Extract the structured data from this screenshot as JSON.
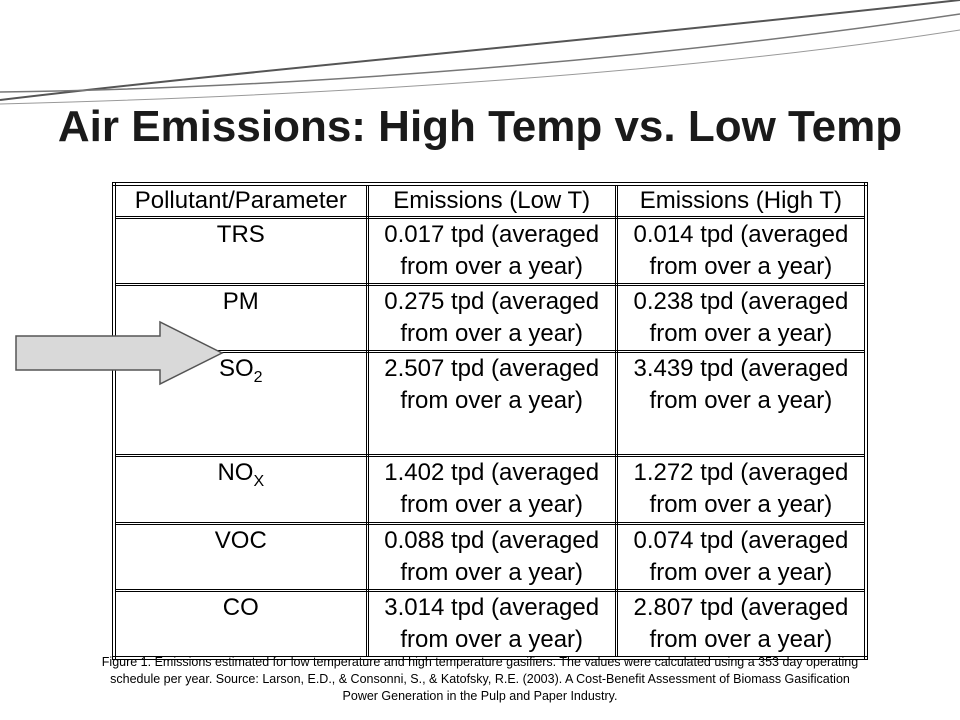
{
  "slide": {
    "title": "Air Emissions: High Temp vs. Low Temp"
  },
  "table": {
    "headers": [
      "Pollutant/Parameter",
      "Emissions (Low T)",
      "Emissions (High T)"
    ],
    "rows": [
      {
        "pollutant": "TRS",
        "sub": "",
        "low_line1": "0.017 tpd (averaged",
        "low_line2": "from over a year)",
        "high_line1": "0.014 tpd (averaged",
        "high_line2": "from over a year)"
      },
      {
        "pollutant": "PM",
        "sub": "",
        "low_line1": "0.275 tpd (averaged",
        "low_line2": "from over a year)",
        "high_line1": "0.238 tpd (averaged",
        "high_line2": "from over a year)"
      },
      {
        "pollutant": "SO",
        "sub": "2",
        "low_line1": "2.507 tpd (averaged",
        "low_line2": "from over a year)",
        "high_line1": "3.439 tpd (averaged",
        "high_line2": "from over a year)"
      },
      {
        "pollutant": "NO",
        "sub": "X",
        "low_line1": "1.402 tpd (averaged",
        "low_line2": "from over a year)",
        "high_line1": "1.272 tpd (averaged",
        "high_line2": "from over a year)"
      },
      {
        "pollutant": "VOC",
        "sub": "",
        "low_line1": "0.088 tpd (averaged",
        "low_line2": "from over a year)",
        "high_line1": "0.074 tpd (averaged",
        "high_line2": "from over a year)"
      },
      {
        "pollutant": "CO",
        "sub": "",
        "low_line1": "3.014 tpd (averaged",
        "low_line2": "from over a year)",
        "high_line1": "2.807 tpd (averaged",
        "high_line2": "from over a year)"
      }
    ]
  },
  "annotation": {
    "arrow_icon": "right-arrow-icon",
    "arrow_fill": "#d9d9d9"
  },
  "caption": {
    "line1": "Figure 1. Emissions estimated for low temperature and high temperature gasifiers. The values were calculated using a 353 day operating",
    "line2": "schedule per year.  Source: Larson, E.D., & Consonni, S., & Katofsky, R.E. (2003). A Cost-Benefit Assessment of Biomass Gasification",
    "line3": "Power Generation in the Pulp and Paper Industry."
  }
}
